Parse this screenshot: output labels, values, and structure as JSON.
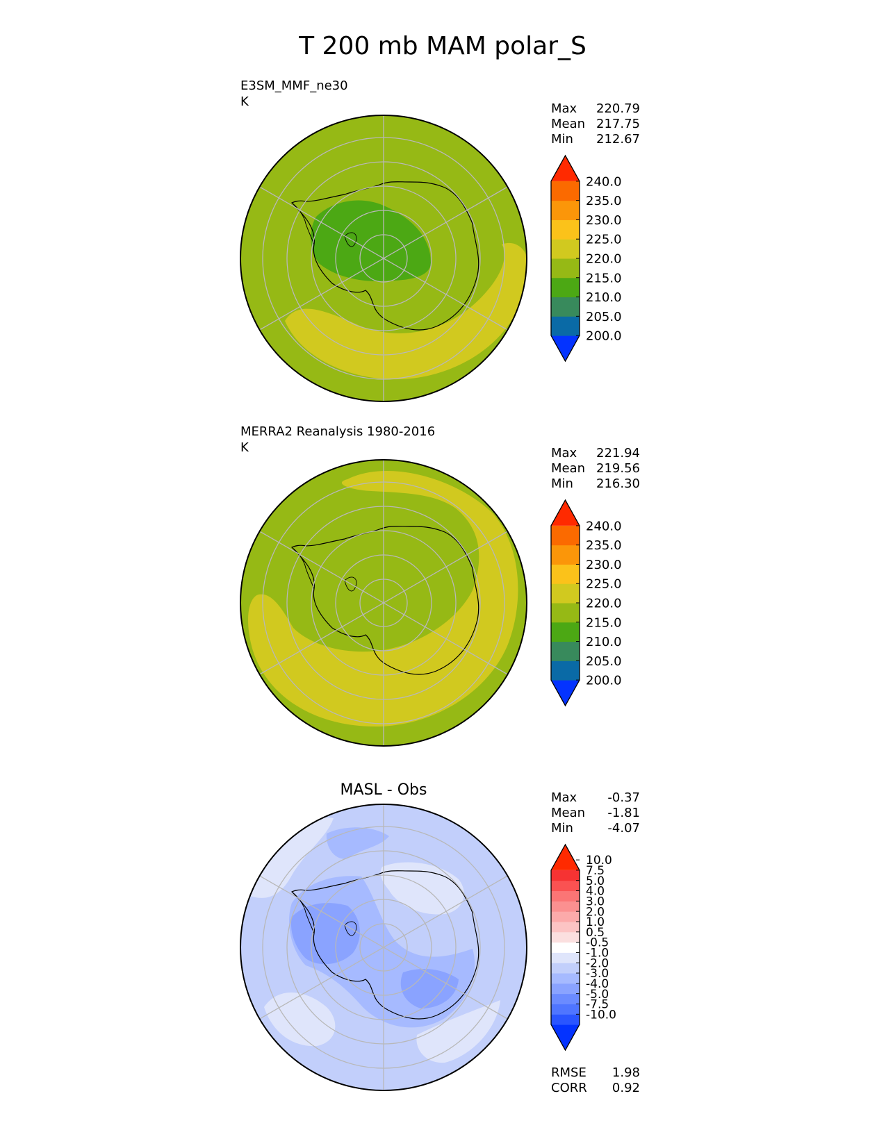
{
  "figure_title": "T 200 mb MAM polar_S",
  "chart_data": [
    {
      "type": "heatmap",
      "projection": "south-polar-stereographic",
      "title": "E3SM_MMF_ne30",
      "units": "K",
      "stats": [
        {
          "label": "Max",
          "value": "220.79"
        },
        {
          "label": "Mean",
          "value": "217.75"
        },
        {
          "label": "Min",
          "value": "212.67"
        }
      ],
      "colorbar_levels": [
        "200.0",
        "205.0",
        "210.0",
        "215.0",
        "220.0",
        "225.0",
        "230.0",
        "235.0",
        "240.0"
      ],
      "colorbar_colors": [
        "#0433ff",
        "#0a6aa6",
        "#388a5c",
        "#4ca814",
        "#96b915",
        "#d1c91f",
        "#fbc21a",
        "#fb9609",
        "#fb6a00",
        "#ff2a00"
      ],
      "field_regions": [
        {
          "level": "210-215",
          "description": "polar cap over East Antarctica"
        },
        {
          "level": "215-220",
          "description": "background"
        },
        {
          "level": "220-225",
          "description": "mid-latitude arc"
        }
      ]
    },
    {
      "type": "heatmap",
      "projection": "south-polar-stereographic",
      "title": "MERRA2 Reanalysis 1980-2016",
      "units": "K",
      "stats": [
        {
          "label": "Max",
          "value": "221.94"
        },
        {
          "label": "Mean",
          "value": "219.56"
        },
        {
          "label": "Min",
          "value": "216.30"
        }
      ],
      "colorbar_levels": [
        "200.0",
        "205.0",
        "210.0",
        "215.0",
        "220.0",
        "225.0",
        "230.0",
        "235.0",
        "240.0"
      ],
      "colorbar_colors": [
        "#0433ff",
        "#0a6aa6",
        "#388a5c",
        "#4ca814",
        "#96b915",
        "#d1c91f",
        "#fbc21a",
        "#fb9609",
        "#fb6a00",
        "#ff2a00"
      ],
      "field_regions": [
        {
          "level": "215-220",
          "description": "background"
        },
        {
          "level": "220-225",
          "description": "broad ring around the pole"
        }
      ]
    },
    {
      "type": "heatmap",
      "projection": "south-polar-stereographic",
      "title": "MASL - Obs",
      "units": "",
      "stats": [
        {
          "label": "Max",
          "value": "-0.37"
        },
        {
          "label": "Mean",
          "value": "-1.81"
        },
        {
          "label": "Min",
          "value": "-4.07"
        }
      ],
      "footer_stats": [
        {
          "label": "RMSE",
          "value": "1.98"
        },
        {
          "label": "CORR",
          "value": "0.92"
        }
      ],
      "colorbar_levels": [
        "-10.0",
        "-7.5",
        "-5.0",
        "-4.0",
        "-3.0",
        "-2.0",
        "-1.0",
        "-0.5",
        "0.5",
        "1.0",
        "2.0",
        "3.0",
        "4.0",
        "5.0",
        "7.5",
        "10.0"
      ],
      "colorbar_colors": [
        "#0433ff",
        "#2a55ff",
        "#4f75ff",
        "#6b8bff",
        "#8aa3ff",
        "#a6baff",
        "#c2cffb",
        "#dfe5fb",
        "#ffffff",
        "#fbdfdf",
        "#fcc4c4",
        "#fcaaaa",
        "#fb9090",
        "#fb7575",
        "#fa5252",
        "#f63333",
        "#ff2a00"
      ],
      "field_regions": [
        {
          "level": "-1.0 to -0.5",
          "description": "light patches near the rim"
        },
        {
          "level": "-2.0 to -1.0",
          "description": "background"
        },
        {
          "level": "-3.0 to -2.0",
          "description": "interior band"
        },
        {
          "level": "-4.0 to -3.0",
          "description": "strongest negative lobes"
        }
      ]
    }
  ]
}
